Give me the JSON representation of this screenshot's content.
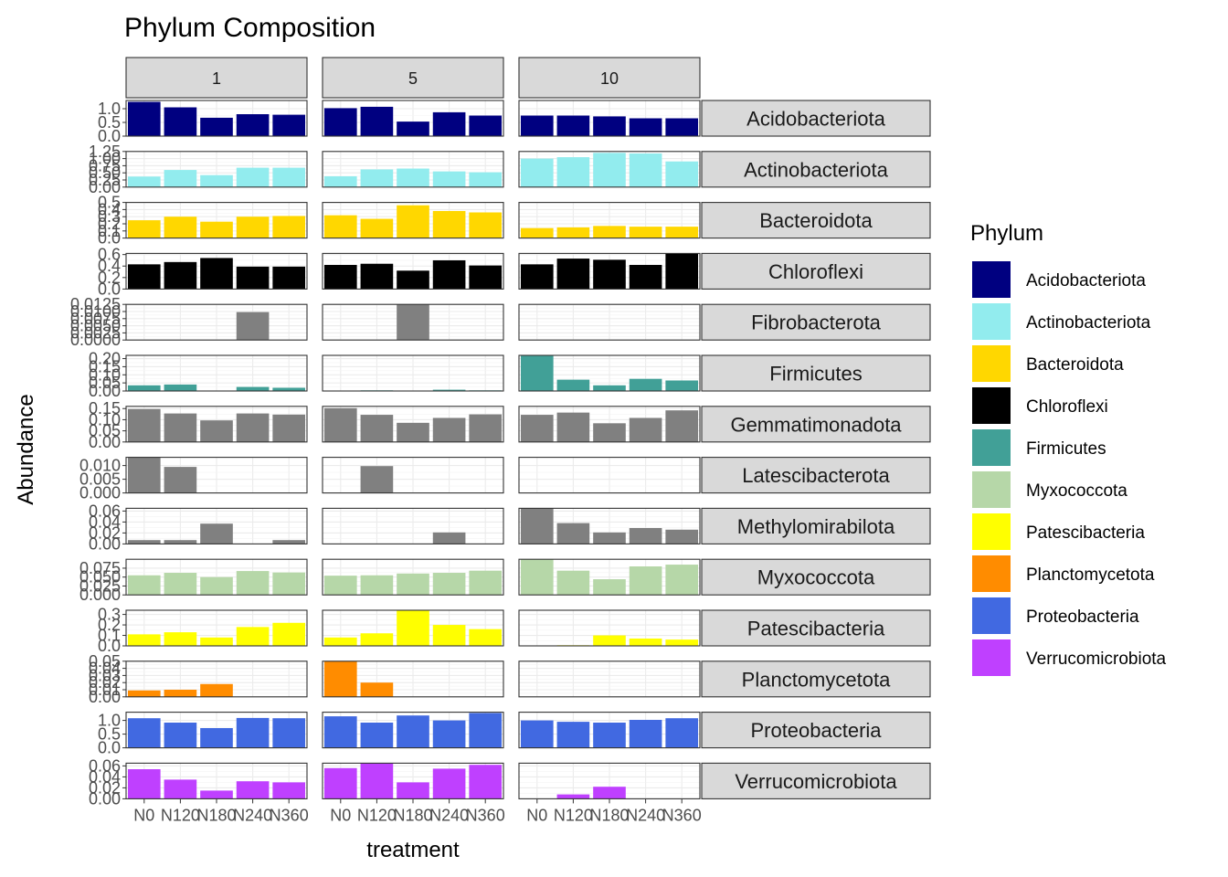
{
  "chart_data": {
    "type": "bar",
    "title": "Phylum Composition",
    "xlabel": "treatment",
    "ylabel": "Abundance",
    "x_tick_labels": [
      "N0",
      "N120",
      "N180",
      "N240",
      "N360"
    ],
    "facet_columns": [
      "1",
      "5",
      "10"
    ],
    "legend": {
      "title": "Phylum",
      "placement": "right",
      "entries": [
        {
          "name": "Acidobacteriota",
          "color": "#000080"
        },
        {
          "name": "Actinobacteriota",
          "color": "#92ECEE"
        },
        {
          "name": "Bacteroidota",
          "color": "#FFD700"
        },
        {
          "name": "Chloroflexi",
          "color": "#000000"
        },
        {
          "name": "Firmicutes",
          "color": "#41A097"
        },
        {
          "name": "Myxococcota",
          "color": "#B6D7A8"
        },
        {
          "name": "Patescibacteria",
          "color": "#FFFF00"
        },
        {
          "name": "Planctomycetota",
          "color": "#FF8C00"
        },
        {
          "name": "Proteobacteria",
          "color": "#4169E1"
        },
        {
          "name": "Verrucomicrobiota",
          "color": "#BF40FF"
        }
      ]
    },
    "grid": true,
    "rows": [
      {
        "name": "Acidobacteriota",
        "color": "#000080",
        "ylim": [
          0,
          1.3
        ],
        "ticks": [
          0.0,
          0.5,
          1.0
        ],
        "tick_labels": [
          "0.0",
          "0.5",
          "1.0"
        ],
        "values": [
          [
            1.25,
            1.05,
            0.67,
            0.8,
            0.78
          ],
          [
            1.02,
            1.07,
            0.53,
            0.87,
            0.75
          ],
          [
            0.75,
            0.75,
            0.72,
            0.65,
            0.65
          ]
        ]
      },
      {
        "name": "Actinobacteriota",
        "color": "#92ECEE",
        "ylim": [
          0,
          1.25
        ],
        "ticks": [
          0.0,
          0.25,
          0.5,
          0.75,
          1.0,
          1.25
        ],
        "tick_labels": [
          "0.00",
          "0.25",
          "0.50",
          "0.75",
          "1.00",
          "1.25"
        ],
        "values": [
          [
            0.37,
            0.6,
            0.42,
            0.68,
            0.68
          ],
          [
            0.38,
            0.62,
            0.65,
            0.55,
            0.52
          ],
          [
            1.0,
            1.05,
            1.2,
            1.18,
            0.9
          ]
        ]
      },
      {
        "name": "Bacteroidota",
        "color": "#FFD700",
        "ylim": [
          0,
          0.5
        ],
        "ticks": [
          0.0,
          0.1,
          0.2,
          0.3,
          0.4,
          0.5
        ],
        "tick_labels": [
          "0.0",
          "0.1",
          "0.2",
          "0.3",
          "0.4",
          "0.5"
        ],
        "values": [
          [
            0.25,
            0.3,
            0.23,
            0.3,
            0.31
          ],
          [
            0.32,
            0.27,
            0.46,
            0.38,
            0.36
          ],
          [
            0.14,
            0.15,
            0.17,
            0.16,
            0.16
          ]
        ]
      },
      {
        "name": "Chloroflexi",
        "color": "#000000",
        "ylim": [
          0,
          0.62
        ],
        "ticks": [
          0.0,
          0.2,
          0.4,
          0.6
        ],
        "tick_labels": [
          "0.0",
          "0.2",
          "0.4",
          "0.6"
        ],
        "values": [
          [
            0.43,
            0.47,
            0.54,
            0.39,
            0.39
          ],
          [
            0.42,
            0.44,
            0.32,
            0.5,
            0.41
          ],
          [
            0.43,
            0.53,
            0.51,
            0.42,
            0.65
          ]
        ]
      },
      {
        "name": "Fibrobacterota",
        "color": "#808080",
        "ylim": [
          0,
          0.0125
        ],
        "ticks": [
          0.0,
          0.0025,
          0.005,
          0.0075,
          0.01,
          0.0125
        ],
        "tick_labels": [
          "0.0000",
          "0.0025",
          "0.0050",
          "0.0075",
          "0.0100",
          "0.0125"
        ],
        "values": [
          [
            0,
            0,
            0,
            0.0098,
            0
          ],
          [
            0,
            0,
            0.0125,
            0,
            0
          ],
          [
            0,
            0,
            0,
            0,
            0
          ]
        ]
      },
      {
        "name": "Firmicutes",
        "color": "#41A097",
        "ylim": [
          0,
          0.22
        ],
        "ticks": [
          0.0,
          0.05,
          0.1,
          0.15,
          0.2
        ],
        "tick_labels": [
          "0.00",
          "0.05",
          "0.10",
          "0.15",
          "0.20"
        ],
        "values": [
          [
            0.035,
            0.04,
            0,
            0.025,
            0.02
          ],
          [
            0,
            0.004,
            0,
            0.008,
            0.004
          ],
          [
            0.22,
            0.07,
            0.035,
            0.075,
            0.065
          ]
        ]
      },
      {
        "name": "Gemmatimonadota",
        "color": "#808080",
        "ylim": [
          0,
          0.16
        ],
        "ticks": [
          0.0,
          0.05,
          0.1,
          0.15
        ],
        "tick_labels": [
          "0.00",
          "0.05",
          "0.10",
          "0.15"
        ],
        "values": [
          [
            0.148,
            0.128,
            0.097,
            0.128,
            0.123
          ],
          [
            0.152,
            0.122,
            0.086,
            0.108,
            0.124
          ],
          [
            0.122,
            0.132,
            0.084,
            0.108,
            0.142
          ]
        ]
      },
      {
        "name": "Latescibacterota",
        "color": "#808080",
        "ylim": [
          0,
          0.013
        ],
        "ticks": [
          0.0,
          0.005,
          0.01
        ],
        "tick_labels": [
          "0.000",
          "0.005",
          "0.010"
        ],
        "values": [
          [
            0.013,
            0.0095,
            0,
            0,
            0
          ],
          [
            0,
            0.0098,
            0,
            0,
            0
          ],
          [
            0,
            0,
            0,
            0,
            0
          ]
        ]
      },
      {
        "name": "Methylomirabilota",
        "color": "#808080",
        "ylim": [
          0,
          0.065
        ],
        "ticks": [
          0.0,
          0.02,
          0.04,
          0.06
        ],
        "tick_labels": [
          "0.00",
          "0.02",
          "0.04",
          "0.06"
        ],
        "values": [
          [
            0.007,
            0.007,
            0.037,
            0,
            0.007
          ],
          [
            0,
            0,
            0,
            0.021,
            0
          ],
          [
            0.065,
            0.038,
            0.021,
            0.029,
            0.026
          ]
        ]
      },
      {
        "name": "Myxococcota",
        "color": "#B6D7A8",
        "ylim": [
          0,
          0.1
        ],
        "ticks": [
          0.0,
          0.025,
          0.05,
          0.075
        ],
        "tick_labels": [
          "0.000",
          "0.025",
          "0.050",
          "0.075"
        ],
        "values": [
          [
            0.055,
            0.062,
            0.05,
            0.067,
            0.063
          ],
          [
            0.054,
            0.055,
            0.06,
            0.062,
            0.068
          ],
          [
            0.1,
            0.068,
            0.044,
            0.08,
            0.085
          ]
        ]
      },
      {
        "name": "Patescibacteria",
        "color": "#FFFF00",
        "ylim": [
          0,
          0.34
        ],
        "ticks": [
          0.0,
          0.1,
          0.2,
          0.3
        ],
        "tick_labels": [
          "0.0",
          "0.1",
          "0.2",
          "0.3"
        ],
        "values": [
          [
            0.11,
            0.13,
            0.08,
            0.18,
            0.22
          ],
          [
            0.08,
            0.12,
            0.34,
            0.2,
            0.16
          ],
          [
            0,
            0.006,
            0.1,
            0.07,
            0.06
          ]
        ]
      },
      {
        "name": "Planctomycetota",
        "color": "#FF8C00",
        "ylim": [
          0,
          0.05
        ],
        "ticks": [
          0.0,
          0.01,
          0.02,
          0.03,
          0.04,
          0.05
        ],
        "tick_labels": [
          "0.00",
          "0.01",
          "0.02",
          "0.03",
          "0.04",
          "0.05"
        ],
        "values": [
          [
            0.009,
            0.01,
            0.018,
            0,
            0
          ],
          [
            0.05,
            0.02,
            0,
            0,
            0
          ],
          [
            0,
            0,
            0,
            0,
            0
          ]
        ]
      },
      {
        "name": "Proteobacteria",
        "color": "#4169E1",
        "ylim": [
          0,
          1.3
        ],
        "ticks": [
          0.0,
          0.5,
          1.0
        ],
        "tick_labels": [
          "0.0",
          "0.5",
          "1.0"
        ],
        "values": [
          [
            1.08,
            0.92,
            0.72,
            1.09,
            1.08
          ],
          [
            1.15,
            0.92,
            1.18,
            1.0,
            1.27
          ],
          [
            1.0,
            0.95,
            0.92,
            1.02,
            1.08
          ]
        ]
      },
      {
        "name": "Verrucomicrobiota",
        "color": "#BF40FF",
        "ylim": [
          0,
          0.065
        ],
        "ticks": [
          0.0,
          0.02,
          0.04,
          0.06
        ],
        "tick_labels": [
          "0.00",
          "0.02",
          "0.04",
          "0.06"
        ],
        "values": [
          [
            0.054,
            0.035,
            0.015,
            0.032,
            0.03
          ],
          [
            0.056,
            0.065,
            0.03,
            0.055,
            0.062
          ],
          [
            0,
            0.008,
            0.022,
            0,
            0
          ]
        ]
      }
    ]
  }
}
